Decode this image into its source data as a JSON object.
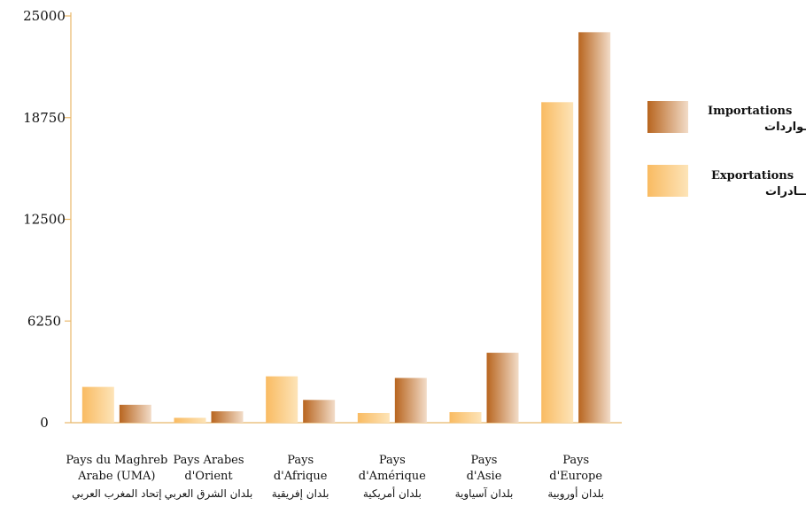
{
  "chart_data": {
    "type": "bar",
    "categories": [
      {
        "fr": [
          "Pays du Maghreb",
          "Arabe (UMA)"
        ],
        "ar": "إتحاد المغرب العربي"
      },
      {
        "fr": [
          "Pays Arabes",
          "d'Orient"
        ],
        "ar": "بلدان الشرق العربي"
      },
      {
        "fr": [
          "Pays",
          "d'Afrique"
        ],
        "ar": "بلدان إفريقية"
      },
      {
        "fr": [
          "Pays",
          "d'Amérique"
        ],
        "ar": "بلدان أمريكية"
      },
      {
        "fr": [
          "Pays",
          "d'Asie"
        ],
        "ar": "بلدان آسياوية"
      },
      {
        "fr": [
          "Pays",
          "d'Europe"
        ],
        "ar": "بلدان أوروبية"
      }
    ],
    "series": [
      {
        "name": "Exportations",
        "name_ar": "الصـــادرات",
        "values": [
          2200,
          300,
          2850,
          600,
          650,
          19700
        ]
      },
      {
        "name": "Importations",
        "name_ar": "الـــواردات",
        "values": [
          1100,
          700,
          1400,
          2750,
          4300,
          24000
        ]
      }
    ],
    "yticks": [
      "0",
      "6250",
      "12500",
      "18750",
      "25000"
    ],
    "ylim": [
      0,
      25000
    ],
    "legend_position": "right",
    "colors": {
      "exportations_light": "#fde4b8",
      "exportations_dark": "#f9bb62",
      "importations_light": "#f2dcc8",
      "importations_dark": "#b8651f",
      "axis": "#e8b86a"
    }
  }
}
